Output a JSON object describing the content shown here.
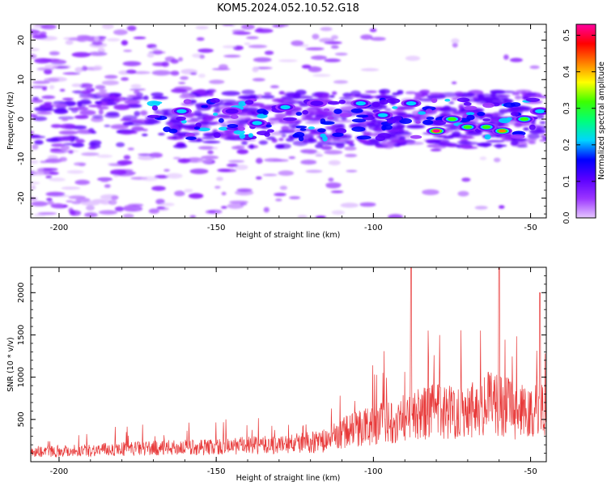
{
  "figure": {
    "title": "KOM5.2024.052.10.52.G18"
  },
  "chart_data": [
    {
      "type": "heatmap",
      "xlabel": "Height of straight line (km)",
      "ylabel": "Frequency (Hz)",
      "xlim": [
        -209,
        -45
      ],
      "ylim": [
        -25,
        24
      ],
      "xticks": [
        -200,
        -150,
        -100,
        -50
      ],
      "yticks": [
        -20,
        -10,
        0,
        10,
        20
      ],
      "colorbar": {
        "label": "Normalized spectral amplitude",
        "range": [
          0.0,
          0.53
        ],
        "ticks": [
          0.0,
          0.1,
          0.2,
          0.3,
          0.4,
          0.5
        ],
        "ticklabels": [
          "0.0",
          "0.1",
          "0.2",
          "0.3",
          "0.4",
          "0.5"
        ],
        "colormap": [
          "#ffffff",
          "#e6c8ff",
          "#9b35ff",
          "#5a00ff",
          "#0000ff",
          "#00d5ff",
          "#00ff7a",
          "#3cff00",
          "#ffff00",
          "#ff8000",
          "#ff0000",
          "#ff00a0"
        ]
      },
      "features": [
        {
          "x": -161,
          "y": 2,
          "value": 0.22
        },
        {
          "x": -145,
          "y": 2,
          "value": 0.18
        },
        {
          "x": -137,
          "y": -1,
          "value": 0.25
        },
        {
          "x": -128,
          "y": 3,
          "value": 0.22
        },
        {
          "x": -118,
          "y": 4,
          "value": 0.2
        },
        {
          "x": -104,
          "y": 4,
          "value": 0.27
        },
        {
          "x": -97,
          "y": 1,
          "value": 0.3
        },
        {
          "x": -88,
          "y": 4,
          "value": 0.22
        },
        {
          "x": -80,
          "y": -3,
          "value": 0.5
        },
        {
          "x": -75,
          "y": 0,
          "value": 0.35
        },
        {
          "x": -70,
          "y": -2,
          "value": 0.33
        },
        {
          "x": -64,
          "y": -2,
          "value": 0.32
        },
        {
          "x": -59,
          "y": -3,
          "value": 0.42
        },
        {
          "x": -52,
          "y": 0,
          "value": 0.37
        },
        {
          "x": -47,
          "y": 2,
          "value": 0.3
        }
      ]
    },
    {
      "type": "line",
      "xlabel": "Height of straight line (km)",
      "ylabel": "SNR (10 * v/v)",
      "xlim": [
        -209,
        -45
      ],
      "ylim": [
        0,
        2300
      ],
      "xticks": [
        -200,
        -150,
        -100,
        -50
      ],
      "yticks": [
        500,
        1000,
        1500,
        2000
      ],
      "color": "#e83a3a",
      "series": [
        {
          "x": [
            -209,
            -200,
            -190,
            -180,
            -170,
            -160,
            -150,
            -140,
            -130,
            -120,
            -115,
            -110,
            -105,
            -100,
            -95,
            -90,
            -88,
            -85,
            -80,
            -75,
            -70,
            -65,
            -62,
            -60,
            -55,
            -50,
            -47,
            -45
          ],
          "values": [
            150,
            160,
            170,
            190,
            200,
            210,
            220,
            240,
            250,
            290,
            310,
            420,
            500,
            540,
            600,
            650,
            2300,
            700,
            760,
            740,
            800,
            820,
            900,
            2300,
            750,
            700,
            2000,
            900
          ]
        }
      ]
    }
  ]
}
